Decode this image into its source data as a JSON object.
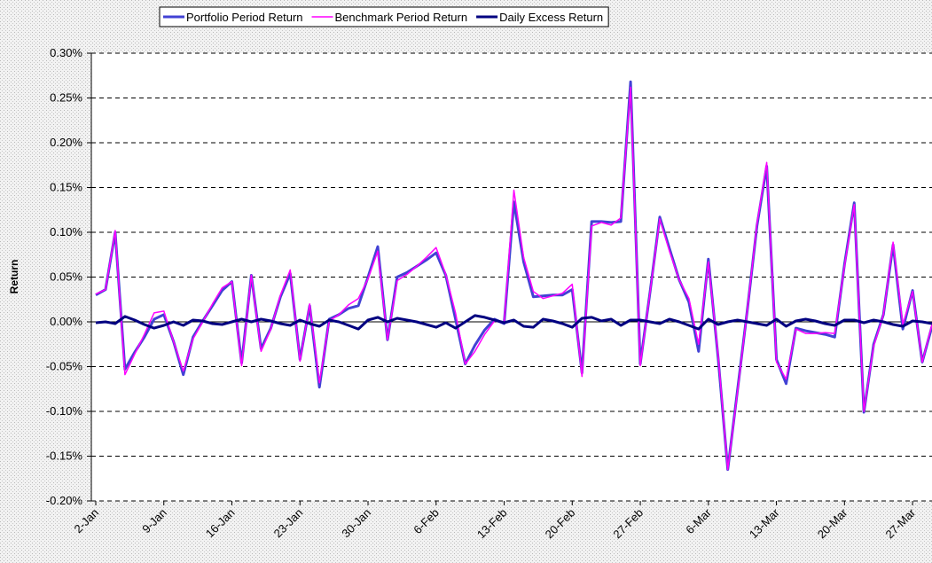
{
  "chart_data": {
    "type": "line",
    "ylabel": "Return",
    "legend": "top",
    "grid": true,
    "categories": [
      "2-Jan",
      null,
      null,
      null,
      null,
      null,
      null,
      "9-Jan",
      null,
      null,
      null,
      null,
      null,
      null,
      "16-Jan",
      null,
      null,
      null,
      null,
      null,
      null,
      "23-Jan",
      null,
      null,
      null,
      null,
      null,
      null,
      "30-Jan",
      null,
      null,
      null,
      null,
      null,
      null,
      "6-Feb",
      null,
      null,
      null,
      null,
      null,
      null,
      "13-Feb",
      null,
      null,
      null,
      null,
      null,
      null,
      "20-Feb",
      null,
      null,
      null,
      null,
      null,
      null,
      "27-Feb",
      null,
      null,
      null,
      null,
      null,
      null,
      "6-Mar",
      null,
      null,
      null,
      null,
      null,
      null,
      "13-Mar",
      null,
      null,
      null,
      null,
      null,
      null,
      "20-Mar",
      null,
      null,
      null,
      null,
      null,
      null,
      "27-Mar",
      null,
      null
    ],
    "series": [
      {
        "name": "Portfolio Period Return",
        "color": "#4242d4",
        "values": [
          0.03,
          0.036,
          0.1,
          -0.053,
          -0.034,
          -0.017,
          0.003,
          0.008,
          -0.022,
          -0.059,
          -0.017,
          0.001,
          0.018,
          0.035,
          0.045,
          -0.046,
          0.052,
          -0.03,
          -0.007,
          0.028,
          0.054,
          -0.042,
          0.018,
          -0.073,
          0.003,
          0.008,
          0.015,
          0.018,
          0.05,
          0.084,
          -0.02,
          0.05,
          0.055,
          0.062,
          0.069,
          0.077,
          0.052,
          0.003,
          -0.047,
          -0.026,
          -0.009,
          0.003,
          -0.002,
          0.134,
          0.067,
          0.028,
          0.029,
          0.03,
          0.03,
          0.036,
          -0.057,
          0.112,
          0.112,
          0.111,
          0.112,
          0.268,
          -0.047,
          0.033,
          0.117,
          0.082,
          0.047,
          0.022,
          -0.033,
          0.07,
          -0.04,
          -0.165,
          -0.076,
          0.013,
          0.107,
          0.174,
          -0.042,
          -0.069,
          -0.007,
          -0.01,
          -0.012,
          -0.014,
          -0.017,
          0.064,
          0.133,
          -0.101,
          -0.025,
          0.008,
          0.086,
          -0.008,
          0.035,
          -0.045,
          -0.005
        ]
      },
      {
        "name": "Benchmark Period Return",
        "color": "#ff00ff",
        "values": [
          0.031,
          0.036,
          0.102,
          -0.059,
          -0.036,
          -0.014,
          0.01,
          0.012,
          -0.022,
          -0.055,
          -0.019,
          0.0,
          0.02,
          0.038,
          0.045,
          -0.049,
          0.052,
          -0.033,
          -0.008,
          0.03,
          0.058,
          -0.044,
          0.02,
          -0.068,
          0.001,
          0.008,
          0.019,
          0.026,
          0.048,
          0.079,
          -0.02,
          0.046,
          0.053,
          0.062,
          0.072,
          0.083,
          0.053,
          0.01,
          -0.047,
          -0.033,
          -0.014,
          0.001,
          -0.001,
          0.147,
          0.072,
          0.034,
          0.026,
          0.029,
          0.032,
          0.042,
          -0.061,
          0.107,
          0.111,
          0.108,
          0.116,
          0.262,
          -0.049,
          0.033,
          0.115,
          0.079,
          0.047,
          0.026,
          -0.025,
          0.067,
          -0.037,
          -0.165,
          -0.078,
          0.013,
          0.109,
          0.178,
          -0.045,
          -0.064,
          -0.008,
          -0.013,
          -0.013,
          -0.012,
          -0.013,
          0.062,
          0.131,
          -0.1,
          -0.027,
          0.008,
          0.089,
          -0.003,
          0.034,
          -0.045,
          -0.003
        ]
      },
      {
        "name": "Daily Excess Return",
        "color": "#000080",
        "values": [
          -0.001,
          0.0,
          -0.002,
          0.006,
          0.002,
          -0.003,
          -0.007,
          -0.004,
          0.0,
          -0.004,
          0.002,
          0.001,
          -0.002,
          -0.003,
          0.0,
          0.003,
          0.0,
          0.003,
          0.001,
          -0.002,
          -0.004,
          0.002,
          -0.002,
          -0.005,
          0.002,
          0.0,
          -0.004,
          -0.008,
          0.002,
          0.005,
          0.0,
          0.004,
          0.002,
          0.0,
          -0.003,
          -0.006,
          -0.001,
          -0.007,
          0.0,
          0.007,
          0.005,
          0.002,
          -0.001,
          0.002,
          -0.005,
          -0.006,
          0.003,
          0.001,
          -0.002,
          -0.006,
          0.004,
          0.005,
          0.001,
          0.003,
          -0.004,
          0.002,
          0.002,
          0.0,
          -0.002,
          0.003,
          0.0,
          -0.004,
          -0.008,
          0.003,
          -0.003,
          0.0,
          0.002,
          0.0,
          -0.002,
          -0.004,
          0.003,
          -0.005,
          0.001,
          0.003,
          0.001,
          -0.002,
          -0.004,
          0.002,
          0.002,
          -0.001,
          0.002,
          0.0,
          -0.003,
          -0.005,
          0.001,
          0.0,
          -0.002
        ]
      }
    ],
    "ylim": [
      -0.2,
      0.3
    ],
    "yticks": [
      {
        "value": -0.2,
        "label": "-0.20%"
      },
      {
        "value": -0.15,
        "label": "-0.15%"
      },
      {
        "value": -0.1,
        "label": "-0.10%"
      },
      {
        "value": -0.05,
        "label": "-0.05%"
      },
      {
        "value": 0,
        "label": "0.00%"
      },
      {
        "value": 0.05,
        "label": "0.05%"
      },
      {
        "value": 0.1,
        "label": "0.10%"
      },
      {
        "value": 0.15,
        "label": "0.15%"
      },
      {
        "value": 0.2,
        "label": "0.20%"
      },
      {
        "value": 0.25,
        "label": "0.25%"
      },
      {
        "value": 0.3,
        "label": "0.30%"
      }
    ]
  }
}
